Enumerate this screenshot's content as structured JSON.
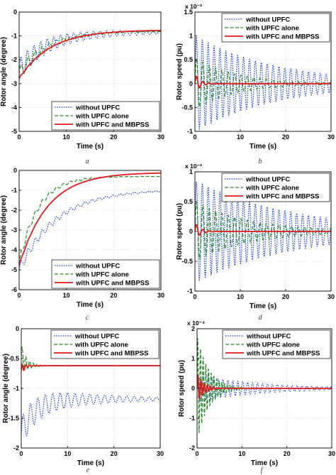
{
  "colors": {
    "without": "#1f3fd6",
    "alone": "#1e8a1e",
    "mbpss": "#e01b1b",
    "grid": "#bdbdbd"
  },
  "chart_data": [
    {
      "id": "a",
      "type": "line",
      "caption": "a",
      "xlabel": "Time (s)",
      "ylabel": "Rotor angle (degree)",
      "xlim": [
        0,
        30
      ],
      "ylim": [
        -5,
        0
      ],
      "xticks": [
        "0",
        "10",
        "20",
        "30"
      ],
      "yticks": [
        "-5",
        "-4",
        "-3",
        "-2",
        "-1",
        "0"
      ],
      "exponent": "",
      "legend_position": "bottom-right",
      "grid": true,
      "series": [
        {
          "name": "without UPFC",
          "style": "dotted",
          "start": -2.4,
          "final": -0.85,
          "tau": 6,
          "amp": 0.45,
          "period": 1.4,
          "decay": 15,
          "dip": 0
        },
        {
          "name": "with UPFC alone",
          "style": "dashed",
          "start": -2.6,
          "final": -0.8,
          "tau": 6,
          "amp": 0.3,
          "period": 1.5,
          "decay": 8,
          "dip": 0
        },
        {
          "name": "with UPFC and MBPSS",
          "style": "solid",
          "start": -2.8,
          "final": -0.75,
          "tau": 6.5,
          "amp": 0.05,
          "period": 1.5,
          "decay": 2,
          "dip": 0
        }
      ]
    },
    {
      "id": "b",
      "type": "line",
      "caption": "b",
      "xlabel": "Time (s)",
      "ylabel": "Rotor speed (pu)",
      "xlim": [
        0,
        30
      ],
      "ylim": [
        -1,
        1.5
      ],
      "xticks": [
        "0",
        "10",
        "20",
        "30"
      ],
      "yticks": [
        "-1",
        "-0.5",
        "0",
        "0.5",
        "1",
        "1.5"
      ],
      "exponent": "x 10⁻³",
      "legend_position": "top-right",
      "grid": true,
      "series": [
        {
          "name": "without UPFC",
          "style": "dotted",
          "start": 0,
          "final": 0,
          "tau": 1,
          "amp": 1.0,
          "period": 1.3,
          "decay": 18,
          "dip": 0
        },
        {
          "name": "with UPFC alone",
          "style": "dashed",
          "start": 0,
          "final": 0,
          "tau": 1,
          "amp": 0.55,
          "period": 1.4,
          "decay": 9,
          "dip": 0
        },
        {
          "name": "with UPFC and MBPSS",
          "style": "solid",
          "start": 0,
          "final": 0,
          "tau": 1,
          "amp": 0.2,
          "period": 1.4,
          "decay": 1.2,
          "dip": 0
        }
      ]
    },
    {
      "id": "c",
      "type": "line",
      "caption": "c",
      "xlabel": "Time (s)",
      "ylabel": "Rotor angle (degree)",
      "xlim": [
        0,
        30
      ],
      "ylim": [
        -6,
        0
      ],
      "xticks": [
        "0",
        "10",
        "20",
        "30"
      ],
      "yticks": [
        "-6",
        "-5",
        "-4",
        "-3",
        "-2",
        "-1",
        "0"
      ],
      "exponent": "",
      "legend_position": "bottom-right",
      "grid": true,
      "series": [
        {
          "name": "without UPFC",
          "style": "dotted",
          "start": -5.0,
          "final": -0.95,
          "tau": 8,
          "amp": 0.25,
          "period": 1.5,
          "decay": 12,
          "dip": 0
        },
        {
          "name": "with UPFC alone",
          "style": "dashed",
          "start": -4.7,
          "final": -0.3,
          "tau": 4,
          "amp": 0.2,
          "period": 1.5,
          "decay": 8,
          "dip": 0
        },
        {
          "name": "with UPFC and MBPSS",
          "style": "solid",
          "start": -4.8,
          "final": -0.1,
          "tau": 6,
          "amp": 0.05,
          "period": 1.5,
          "decay": 2,
          "dip": 0
        }
      ]
    },
    {
      "id": "d",
      "type": "line",
      "caption": "d",
      "xlabel": "Time (s)",
      "ylabel": "Rotor speed (pu)",
      "xlim": [
        0,
        30
      ],
      "ylim": [
        -1,
        1
      ],
      "xticks": [
        "0",
        "10",
        "20",
        "30"
      ],
      "yticks": [
        "-1",
        "-0.5",
        "0",
        "0.5",
        "1"
      ],
      "exponent": "x 10⁻³",
      "legend_position": "top-right",
      "grid": true,
      "series": [
        {
          "name": "without UPFC",
          "style": "dotted",
          "start": 0,
          "final": 0,
          "tau": 1,
          "amp": 0.85,
          "period": 1.3,
          "decay": 22,
          "dip": 0
        },
        {
          "name": "with UPFC alone",
          "style": "dashed",
          "start": 0,
          "final": 0,
          "tau": 1,
          "amp": 0.5,
          "period": 1.4,
          "decay": 12,
          "dip": 0
        },
        {
          "name": "with UPFC and MBPSS",
          "style": "solid",
          "start": 0,
          "final": 0,
          "tau": 1,
          "amp": 0.15,
          "period": 1.4,
          "decay": 1.2,
          "dip": 0
        }
      ]
    },
    {
      "id": "e",
      "type": "line",
      "caption": "e",
      "xlabel": "Time (s)",
      "ylabel": "Rotor angle (degree)",
      "xlim": [
        0,
        30
      ],
      "ylim": [
        -2,
        0
      ],
      "xticks": [
        "0",
        "10",
        "20",
        "30"
      ],
      "yticks": [
        "-2",
        "-1.5",
        "-1",
        "-0.5",
        "0"
      ],
      "exponent": "",
      "legend_position": "top-right",
      "grid": true,
      "series": [
        {
          "name": "without UPFC",
          "style": "dotted",
          "start": -1.75,
          "final": -1.18,
          "tau": 3,
          "amp": 0.25,
          "period": 1.6,
          "decay": 14,
          "dip": 0
        },
        {
          "name": "with UPFC alone",
          "style": "dashed",
          "start": -0.45,
          "final": -0.62,
          "tau": 0.8,
          "amp": 0.2,
          "period": 0.8,
          "decay": 1.5,
          "dip": 0
        },
        {
          "name": "with UPFC and MBPSS",
          "style": "solid",
          "start": -0.7,
          "final": -0.62,
          "tau": 0.6,
          "amp": 0.1,
          "period": 0.8,
          "decay": 0.8,
          "dip": 0
        }
      ]
    },
    {
      "id": "f",
      "type": "line",
      "caption": "f",
      "xlabel": "Time (s)",
      "ylabel": "Rotor speed (pu)",
      "xlim": [
        0,
        30
      ],
      "ylim": [
        -2,
        2
      ],
      "xticks": [
        "0",
        "10",
        "20",
        "30"
      ],
      "yticks": [
        "-2",
        "-1",
        "0",
        "1",
        "2"
      ],
      "exponent": "x 10⁻⁴",
      "legend_position": "top-right",
      "grid": true,
      "series": [
        {
          "name": "without UPFC",
          "style": "dotted",
          "start": 0,
          "final": 0,
          "tau": 1,
          "amp": 0.45,
          "period": 1.1,
          "decay": 14,
          "dip": 0
        },
        {
          "name": "with UPFC alone",
          "style": "dashed",
          "start": 0,
          "final": 0,
          "tau": 1,
          "amp": 1.8,
          "period": 0.6,
          "decay": 2.5,
          "dip": 0
        },
        {
          "name": "with UPFC and MBPSS",
          "style": "solid",
          "start": 0,
          "final": 0,
          "tau": 1,
          "amp": 0.5,
          "period": 0.7,
          "decay": 1.5,
          "dip": 0
        }
      ]
    }
  ]
}
